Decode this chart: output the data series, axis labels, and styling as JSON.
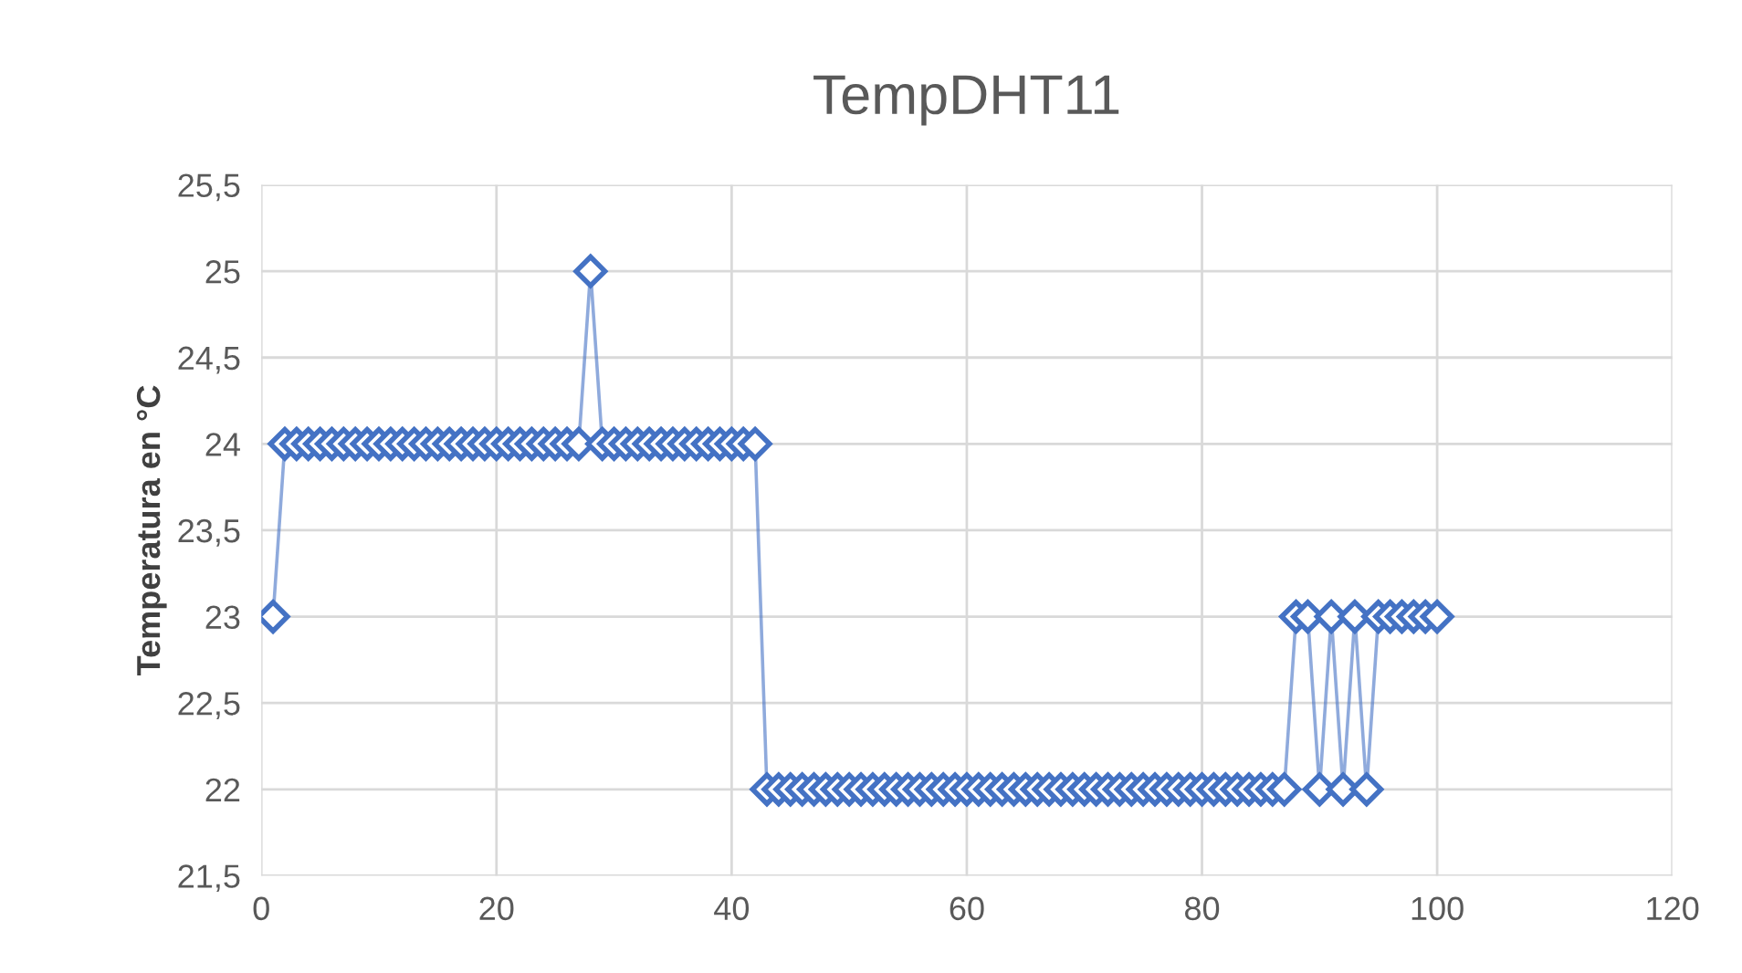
{
  "chart_data": {
    "type": "line",
    "title": "TempDHT11",
    "ylabel": "Temperatura en °C",
    "x": [
      1,
      2,
      3,
      4,
      5,
      6,
      7,
      8,
      9,
      10,
      11,
      12,
      13,
      14,
      15,
      16,
      17,
      18,
      19,
      20,
      21,
      22,
      23,
      24,
      25,
      26,
      27,
      28,
      29,
      30,
      31,
      32,
      33,
      34,
      35,
      36,
      37,
      38,
      39,
      40,
      41,
      42,
      43,
      44,
      45,
      46,
      47,
      48,
      49,
      50,
      51,
      52,
      53,
      54,
      55,
      56,
      57,
      58,
      59,
      60,
      61,
      62,
      63,
      64,
      65,
      66,
      67,
      68,
      69,
      70,
      71,
      72,
      73,
      74,
      75,
      76,
      77,
      78,
      79,
      80,
      81,
      82,
      83,
      84,
      85,
      86,
      87,
      88,
      89,
      90,
      91,
      92,
      93,
      94,
      95,
      96,
      97,
      98,
      99,
      100
    ],
    "series": [
      {
        "color": "#4472c4",
        "values": [
          23,
          24,
          24,
          24,
          24,
          24,
          24,
          24,
          24,
          24,
          24,
          24,
          24,
          24,
          24,
          24,
          24,
          24,
          24,
          24,
          24,
          24,
          24,
          24,
          24,
          24,
          24,
          25,
          24,
          24,
          24,
          24,
          24,
          24,
          24,
          24,
          24,
          24,
          24,
          24,
          24,
          24,
          22,
          22,
          22,
          22,
          22,
          22,
          22,
          22,
          22,
          22,
          22,
          22,
          22,
          22,
          22,
          22,
          22,
          22,
          22,
          22,
          22,
          22,
          22,
          22,
          22,
          22,
          22,
          22,
          22,
          22,
          22,
          22,
          22,
          22,
          22,
          22,
          22,
          22,
          22,
          22,
          22,
          22,
          22,
          22,
          22,
          23,
          23,
          22,
          23,
          22,
          23,
          22,
          23,
          23,
          23,
          23,
          23,
          23
        ]
      }
    ],
    "xlim": [
      0,
      120
    ],
    "xticks": [
      0,
      20,
      40,
      60,
      80,
      100,
      120
    ],
    "ylim": [
      21.5,
      25.5
    ],
    "yticks": [
      {
        "value": 21.5,
        "label": "21,5"
      },
      {
        "value": 22,
        "label": "22"
      },
      {
        "value": 22.5,
        "label": "22,5"
      },
      {
        "value": 23,
        "label": "23"
      },
      {
        "value": 23.5,
        "label": "23,5"
      },
      {
        "value": 24,
        "label": "24"
      },
      {
        "value": 24.5,
        "label": "24,5"
      },
      {
        "value": 25,
        "label": "25"
      },
      {
        "value": 25.5,
        "label": "25,5"
      }
    ],
    "grid": true,
    "marker": "diamond",
    "line_style": "solid"
  }
}
